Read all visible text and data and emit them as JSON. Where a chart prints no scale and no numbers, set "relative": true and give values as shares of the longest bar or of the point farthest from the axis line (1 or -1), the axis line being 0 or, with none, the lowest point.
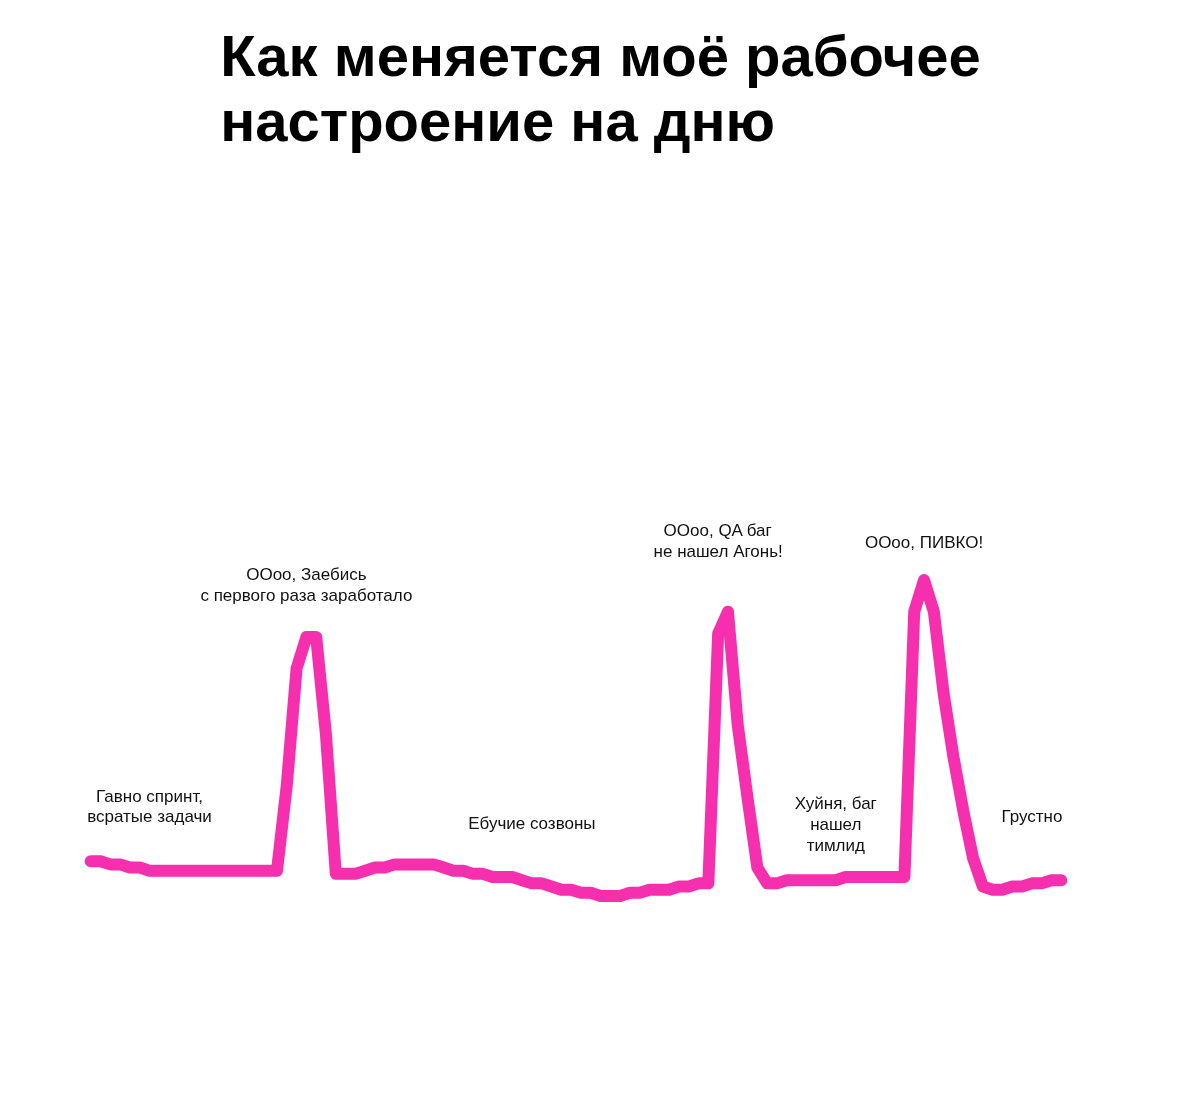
{
  "chart_data": {
    "type": "line",
    "relative": true,
    "title": "Как меняется моё рабочее\nнастроение на дню",
    "categories": [
      null,
      null,
      null,
      null,
      null,
      null,
      null,
      null,
      null,
      null,
      null,
      null,
      null,
      null,
      null,
      null,
      null,
      null,
      null,
      null,
      null,
      null,
      null,
      null,
      null,
      null,
      null,
      null,
      null,
      null,
      null,
      null,
      null,
      null,
      null,
      null,
      null,
      null,
      null,
      null,
      null,
      null,
      null,
      null,
      null,
      null,
      null,
      null,
      null,
      null,
      null,
      null,
      null,
      null,
      null,
      null,
      null,
      null,
      null,
      null,
      null,
      null,
      null,
      null,
      null,
      null,
      null,
      null,
      null,
      null,
      null,
      null,
      null,
      null,
      null,
      null,
      null,
      null,
      null,
      null,
      null,
      null,
      null,
      null,
      null,
      null,
      null,
      null,
      null,
      null,
      null,
      null,
      null,
      null,
      null,
      null,
      null,
      null,
      null,
      null
    ],
    "series": [
      {
        "color": "#f52fae",
        "values": [
          0.11,
          0.11,
          0.1,
          0.1,
          0.09,
          0.09,
          0.08,
          0.08,
          0.08,
          0.08,
          0.08,
          0.08,
          0.08,
          0.08,
          0.08,
          0.08,
          0.08,
          0.08,
          0.08,
          0.08,
          0.35,
          0.72,
          0.82,
          0.82,
          0.51,
          0.07,
          0.07,
          0.07,
          0.08,
          0.09,
          0.09,
          0.1,
          0.1,
          0.1,
          0.1,
          0.1,
          0.09,
          0.08,
          0.08,
          0.07,
          0.07,
          0.06,
          0.06,
          0.06,
          0.05,
          0.04,
          0.04,
          0.03,
          0.02,
          0.02,
          0.01,
          0.01,
          0.0,
          0,
          0.0,
          0.01,
          0.01,
          0.02,
          0.02,
          0.02,
          0.03,
          0.03,
          0.04,
          0.04,
          0.83,
          0.9,
          0.54,
          0.31,
          0.09,
          0.04,
          0.04,
          0.05,
          0.05,
          0.05,
          0.05,
          0.05,
          0.05,
          0.06,
          0.06,
          0.06,
          0.06,
          0.06,
          0.06,
          0.06,
          0.9,
          1,
          0.9,
          0.64,
          0.44,
          0.27,
          0.12,
          0.03,
          0.02,
          0.02,
          0.03,
          0.03,
          0.04,
          0.04,
          0.05,
          0.05
        ]
      }
    ],
    "annotations": [
      "Гавно спринт,\nвсратые задачи",
      "ООоо, Заебись\nс первого раза заработало",
      "Ебучие созвоны",
      "ООоо, QA баг\nне нашел Агонь!",
      "ООоо, ПИВКО!",
      "Хуйня, баг\nнашел\nтимлид",
      "Грустно"
    ],
    "line_style": "solid",
    "grid": false
  }
}
